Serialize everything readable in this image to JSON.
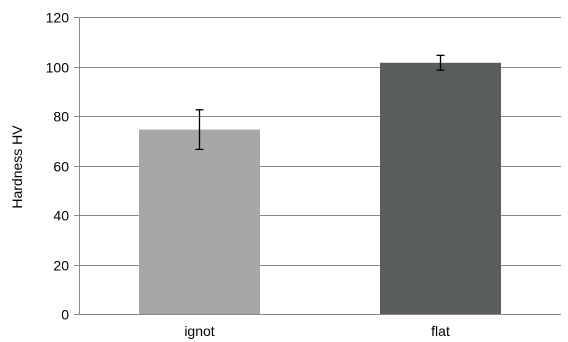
{
  "chart_data": {
    "type": "bar",
    "title": "",
    "xlabel": "",
    "ylabel": "Hardness HV",
    "categories": [
      "ignot",
      "flat"
    ],
    "values": [
      74.5,
      101.5
    ],
    "error": [
      8,
      3
    ],
    "ylim": [
      0,
      120
    ],
    "yticks": [
      0,
      20,
      40,
      60,
      80,
      100,
      120
    ],
    "grid": true,
    "legend": "none",
    "colors": [
      "#a6a8a8",
      "#595d5c"
    ],
    "grid_color": "#8a8a8a",
    "axis_color": "#8a8a8a"
  }
}
